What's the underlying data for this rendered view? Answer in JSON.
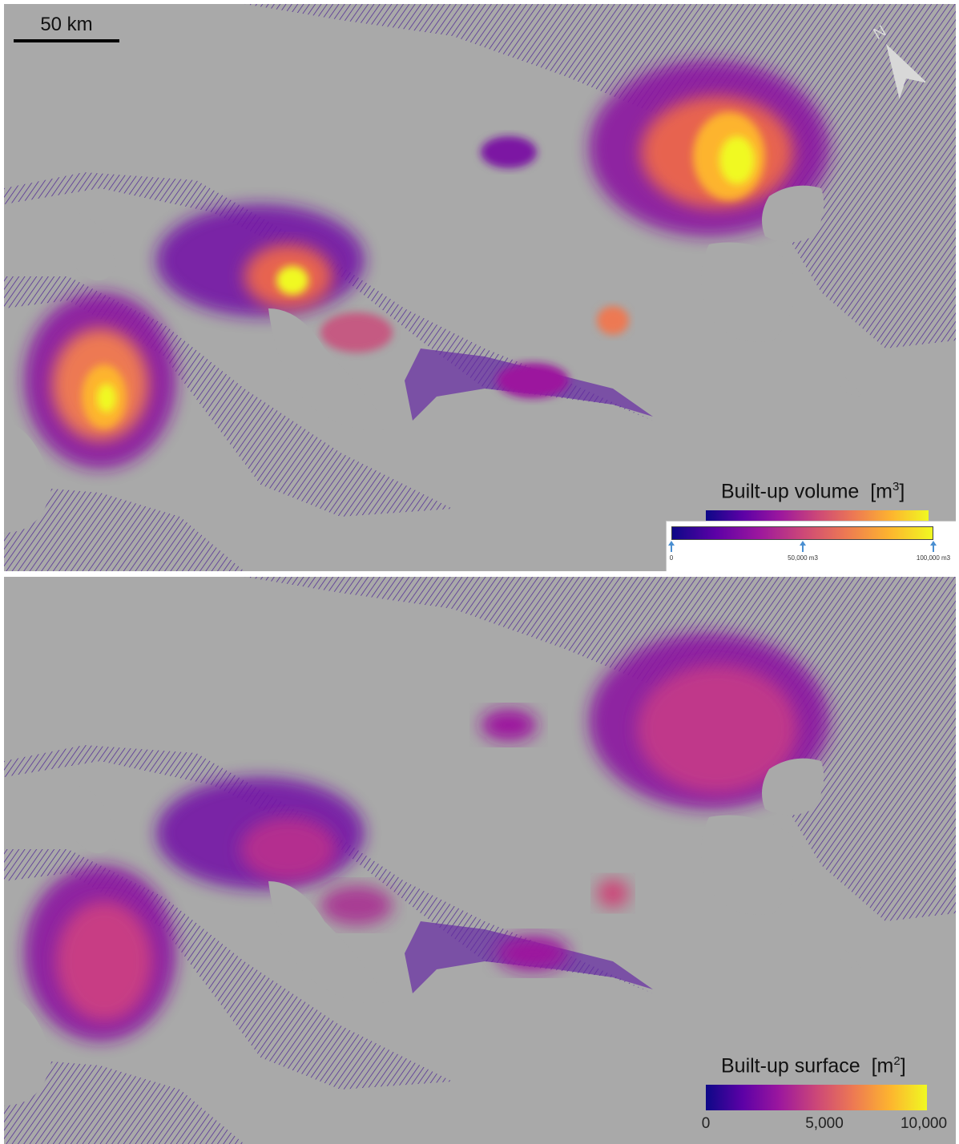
{
  "scale_bar": {
    "label": "50 km"
  },
  "top_panel": {
    "legend_title": "Built-up volume",
    "legend_unit_base": "m",
    "legend_unit_exp": "3",
    "inset_labels": [
      "0",
      "50,000 m3",
      "100,000 m3"
    ]
  },
  "bottom_panel": {
    "legend_title": "Built-up surface",
    "legend_unit_base": "m",
    "legend_unit_exp": "2",
    "tick_labels": [
      "0",
      "5,000",
      "10,000"
    ]
  },
  "colors": {
    "background": "#a9a9a9",
    "ramp": [
      "#0d0887",
      "#5c01a6",
      "#9c179e",
      "#cc4778",
      "#ed7953",
      "#fdb42f",
      "#f0f921"
    ]
  },
  "icons": [
    "north-arrow-icon"
  ]
}
